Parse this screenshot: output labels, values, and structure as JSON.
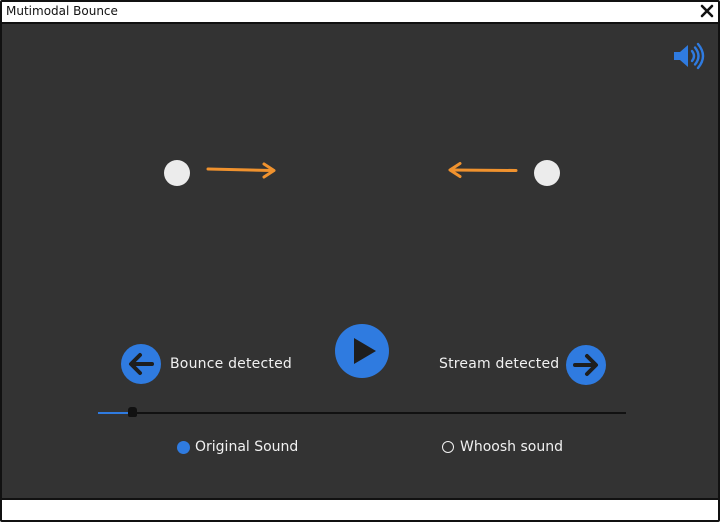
{
  "window": {
    "title": "Mutimodal Bounce"
  },
  "icons": {
    "close": "close-icon",
    "speaker": "speaker-icon",
    "left_arrow": "arrow-left-circle-icon",
    "right_arrow": "arrow-right-circle-icon",
    "play": "play-icon"
  },
  "colors": {
    "stage_background": "#333333",
    "accent": "#2f7be0",
    "arrow": "#f0922e",
    "ball": "#ececec",
    "text": "#f1f1f1"
  },
  "controls": {
    "left_label": "Bounce detected",
    "right_label": "Stream detected",
    "progress_fraction": 0.06
  },
  "sound_options": [
    {
      "label": "Original Sound",
      "checked": true
    },
    {
      "label": "Whoosh sound",
      "checked": false
    }
  ]
}
